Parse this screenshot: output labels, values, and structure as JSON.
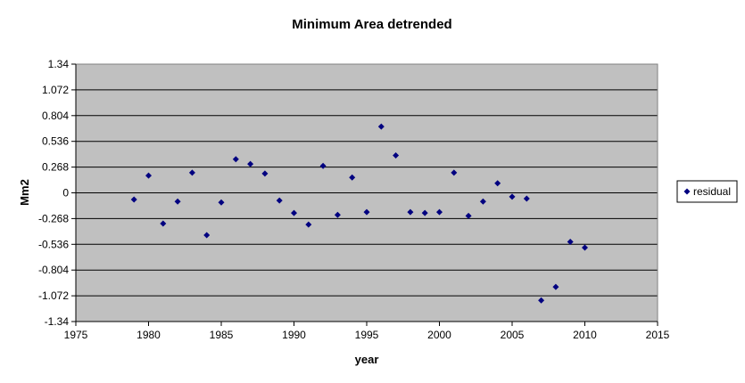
{
  "chart_data": {
    "type": "scatter",
    "title": "Minimum Area detrended",
    "xlabel": "year",
    "ylabel": "Mm2",
    "xlim": [
      1975,
      2015
    ],
    "ylim": [
      -1.34,
      1.34
    ],
    "x_ticks": [
      1975,
      1980,
      1985,
      1990,
      1995,
      2000,
      2005,
      2010,
      2015
    ],
    "y_ticks": [
      -1.34,
      -1.072,
      -0.804,
      -0.536,
      -0.268,
      0,
      0.268,
      0.536,
      0.804,
      1.072,
      1.34
    ],
    "x_tick_labels": [
      "1975",
      "1980",
      "1985",
      "1990",
      "1995",
      "2000",
      "2005",
      "2010",
      "2015"
    ],
    "y_tick_labels": [
      "-1.34",
      "-1.072",
      "-0.804",
      "-0.536",
      "-0.268",
      "0",
      "0.268",
      "0.536",
      "0.804",
      "1.072",
      "1.34"
    ],
    "grid": true,
    "legend_position": "right",
    "series": [
      {
        "name": "residual",
        "color": "#000080",
        "marker": "diamond",
        "x": [
          1979,
          1980,
          1981,
          1982,
          1983,
          1984,
          1985,
          1986,
          1987,
          1988,
          1989,
          1990,
          1991,
          1992,
          1993,
          1994,
          1995,
          1996,
          1997,
          1998,
          1999,
          2000,
          2001,
          2002,
          2003,
          2004,
          2005,
          2006,
          2007,
          2008,
          2009,
          2010
        ],
        "y": [
          -0.07,
          0.18,
          -0.32,
          -0.09,
          0.21,
          -0.44,
          -0.1,
          0.35,
          0.3,
          0.2,
          -0.08,
          -0.21,
          -0.33,
          0.28,
          -0.23,
          0.16,
          -0.2,
          0.69,
          0.39,
          -0.2,
          -0.21,
          -0.2,
          0.21,
          -0.24,
          -0.09,
          0.1,
          -0.04,
          -0.06,
          -1.12,
          -0.98,
          -0.51,
          -0.57
        ]
      }
    ]
  },
  "colors": {
    "plot_background": "#C0C0C0",
    "grid": "#000000",
    "marker": "#000080"
  }
}
